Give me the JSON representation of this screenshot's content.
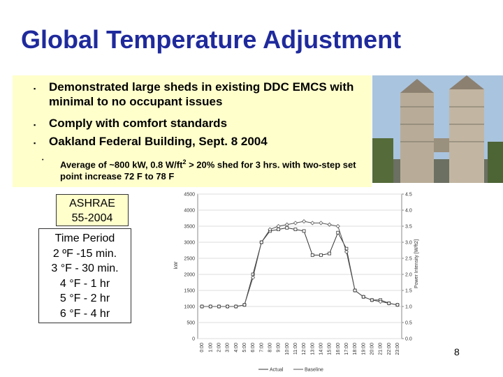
{
  "slide": {
    "title": "Global Temperature Adjustment",
    "bullets": [
      "Demonstrated large sheds in existing DDC EMCS with minimal to no occupant issues",
      "Comply with comfort standards",
      "Oakland Federal Building, Sept. 8 2004"
    ],
    "sub_bullet": [
      "Average of ~800 kW, 0.8 W/ft",
      "2",
      " > 20% shed for 3 hrs. with two-step set point increase 72 F to 78 F"
    ],
    "ashrae": [
      "ASHRAE",
      "55-2004"
    ],
    "time_period": [
      "Time Period",
      "2 ºF -15 min.",
      "3 °F - 30 min.",
      "4 °F - 1 hr",
      "5 °F - 2 hr",
      "6 °F - 4 hr"
    ],
    "page_number": "8"
  },
  "chart_data": {
    "type": "line",
    "ylabel": "kW",
    "y2label": "Power Intensity [W/ft2]",
    "categories": [
      "0:00",
      "1:00",
      "2:00",
      "3:00",
      "4:00",
      "5:00",
      "6:00",
      "7:00",
      "8:00",
      "9:00",
      "10:00",
      "11:00",
      "12:00",
      "13:00",
      "14:00",
      "15:00",
      "16:00",
      "17:00",
      "18:00",
      "19:00",
      "20:00",
      "21:00",
      "22:00",
      "23:00"
    ],
    "series": [
      {
        "name": "Actual",
        "color": "#333333",
        "marker": "square",
        "values": [
          1000,
          1000,
          1000,
          1000,
          1000,
          1050,
          2000,
          3000,
          3350,
          3400,
          3450,
          3400,
          3350,
          2600,
          2600,
          2650,
          3300,
          2800,
          1500,
          1300,
          1200,
          1200,
          1100,
          1050
        ]
      },
      {
        "name": "Baseline",
        "color": "#555555",
        "marker": "diamond",
        "values": [
          1000,
          1000,
          1000,
          1000,
          1000,
          1050,
          1900,
          3000,
          3400,
          3500,
          3550,
          3600,
          3650,
          3600,
          3600,
          3550,
          3500,
          2700,
          1500,
          1300,
          1200,
          1150,
          1100,
          1050
        ]
      }
    ],
    "ylim": [
      0,
      4500
    ],
    "yticks": [
      0,
      500,
      1000,
      1500,
      2000,
      2500,
      3000,
      3500,
      4000,
      4500
    ],
    "y2lim": [
      0,
      4.5
    ],
    "y2ticks": [
      {
        "value": 0,
        "label": "0.0"
      },
      0.5,
      {
        "value": 1,
        "label": "1.0"
      },
      1.5,
      {
        "value": 2,
        "label": "2.0"
      },
      2.5,
      {
        "value": 3,
        "label": "3.0"
      },
      3.5,
      {
        "value": 4,
        "label": "4.0"
      },
      4.5
    ],
    "grid": true
  }
}
